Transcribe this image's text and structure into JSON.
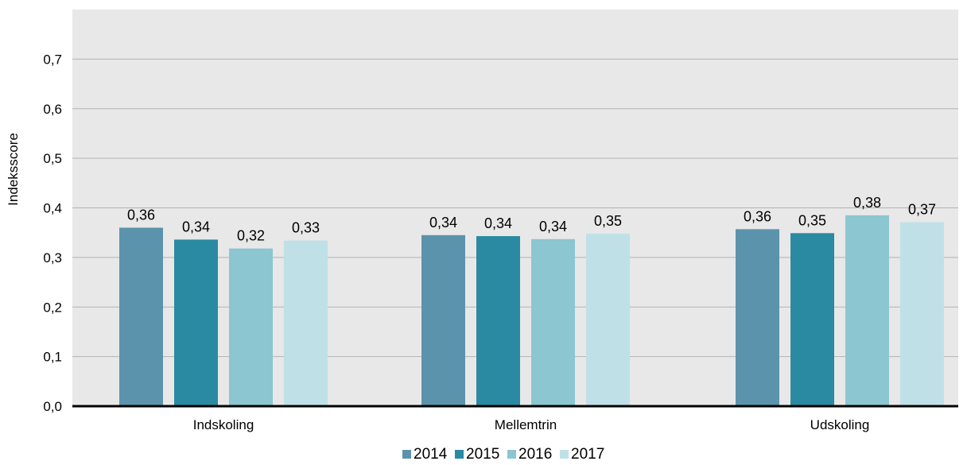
{
  "chart_data": {
    "type": "bar",
    "categories": [
      "Indskoling",
      "Mellemtrin",
      "Udskoling"
    ],
    "series": [
      {
        "name": "2014",
        "values": [
          0.36,
          0.345,
          0.357
        ],
        "labels": [
          "0,36",
          "0,34",
          "0,36"
        ]
      },
      {
        "name": "2015",
        "values": [
          0.336,
          0.343,
          0.349
        ],
        "labels": [
          "0,34",
          "0,34",
          "0,35"
        ]
      },
      {
        "name": "2016",
        "values": [
          0.318,
          0.337,
          0.385
        ],
        "labels": [
          "0,32",
          "0,34",
          "0,38"
        ]
      },
      {
        "name": "2017",
        "values": [
          0.334,
          0.348,
          0.371
        ],
        "labels": [
          "0,33",
          "0,35",
          "0,37"
        ]
      }
    ],
    "ylabel": "Indeksscore",
    "xlabel": "",
    "ylim": [
      0,
      0.8
    ],
    "yticks": [
      0.0,
      0.1,
      0.2,
      0.3,
      0.4,
      0.5,
      0.6,
      0.7
    ],
    "ytick_labels": [
      "0,0",
      "0,1",
      "0,2",
      "0,3",
      "0,4",
      "0,5",
      "0,6",
      "0,7"
    ],
    "grid": true,
    "legend_position": "bottom",
    "colors": {
      "plot_background": "#e8e8e8",
      "gridline": "#b3b3b3",
      "axis": "#000000",
      "series": [
        "#5b93ac",
        "#2a8aa1",
        "#8bc6d1",
        "#c0e0e7"
      ]
    }
  }
}
